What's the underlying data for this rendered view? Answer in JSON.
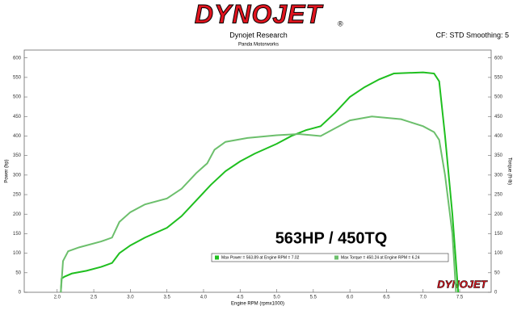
{
  "header": {
    "logo": "DYNOJET",
    "registered": "®",
    "title": "Dynojet Research",
    "subtitle": "Panda Motorworks",
    "settings": "CF: STD Smoothing: 5"
  },
  "chart_data": {
    "type": "line",
    "xlabel": "Engine RPM (rpmx1000)",
    "ylabel": "Power (hp)",
    "y2label": "Torque (ft-lb)",
    "annotation": "563HP / 450TQ",
    "watermark": "DYNOJET",
    "xlim": [
      1.55,
      7.93
    ],
    "ylim": [
      0,
      620
    ],
    "y2lim": [
      0,
      620
    ],
    "xticks": [
      {
        "value": 2,
        "label": "2.0"
      },
      2.5,
      {
        "value": 3,
        "label": "3.0"
      },
      3.5,
      {
        "value": 4,
        "label": "4.0"
      },
      4.5,
      {
        "value": 5,
        "label": "5.0"
      },
      5.5,
      {
        "value": 6,
        "label": "6.0"
      },
      6.5,
      {
        "value": 7,
        "label": "7.0"
      },
      7.5
    ],
    "yticks": [
      0,
      50,
      100,
      150,
      200,
      250,
      300,
      350,
      400,
      450,
      500,
      550,
      600
    ],
    "y2ticks": [
      0,
      50,
      100,
      150,
      200,
      250,
      300,
      350,
      400,
      450,
      500,
      550,
      600
    ],
    "grid": false,
    "series": [
      {
        "name": "Max Power = 563.89 at Engine RPM = 7.02",
        "color": "#1fbf1f",
        "x": [
          2.05,
          2.06,
          2.1,
          2.2,
          2.4,
          2.6,
          2.75,
          2.85,
          3.0,
          3.2,
          3.5,
          3.7,
          3.9,
          4.1,
          4.3,
          4.5,
          4.7,
          5.0,
          5.2,
          5.4,
          5.6,
          5.8,
          6.0,
          6.2,
          6.4,
          6.6,
          7.0,
          7.15,
          7.22,
          7.3,
          7.4,
          7.48
        ],
        "values": [
          0,
          35,
          40,
          48,
          55,
          65,
          75,
          100,
          120,
          140,
          165,
          195,
          235,
          275,
          310,
          335,
          355,
          380,
          400,
          415,
          425,
          460,
          500,
          525,
          545,
          560,
          563,
          560,
          540,
          400,
          200,
          0
        ]
      },
      {
        "name": "Max Torque = 450.24 at Engine RPM = 6.24",
        "color": "#6cbf6c",
        "axis": "y2",
        "x": [
          2.05,
          2.08,
          2.15,
          2.3,
          2.6,
          2.75,
          2.85,
          3.0,
          3.2,
          3.5,
          3.7,
          3.9,
          4.05,
          4.15,
          4.3,
          4.6,
          5.0,
          5.3,
          5.6,
          5.8,
          6.0,
          6.3,
          6.7,
          7.0,
          7.15,
          7.22,
          7.3,
          7.4,
          7.45
        ],
        "values": [
          0,
          80,
          105,
          115,
          130,
          140,
          180,
          205,
          225,
          240,
          265,
          305,
          330,
          365,
          385,
          395,
          402,
          405,
          400,
          420,
          440,
          450,
          443,
          425,
          410,
          390,
          300,
          150,
          0
        ]
      }
    ]
  }
}
